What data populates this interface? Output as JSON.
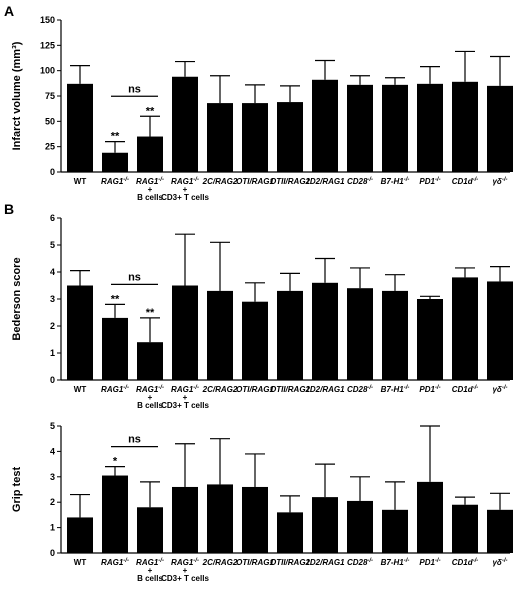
{
  "categories": [
    [
      "WT"
    ],
    [
      "RAG1-/-"
    ],
    [
      "RAG1-/-",
      "+",
      "B cells"
    ],
    [
      "RAG1-/-",
      "+",
      "CD3+ T cells"
    ],
    [
      "2C/RAG2"
    ],
    [
      "OTI/RAG1"
    ],
    [
      "OTII/RAG1"
    ],
    [
      "2D2/RAG1"
    ],
    [
      "CD28-/-"
    ],
    [
      "B7-H1-/-"
    ],
    [
      "PD1-/-"
    ],
    [
      "CD1d-/-"
    ],
    [
      "γδ-/-"
    ]
  ],
  "chart_data": [
    {
      "type": "bar",
      "panel": "A",
      "ylabel": "Infarct volume (mm³)",
      "ylim": [
        0,
        150
      ],
      "yticks": [
        0,
        25,
        50,
        75,
        100,
        125,
        150
      ],
      "values": [
        87,
        19,
        35,
        94,
        68,
        68,
        69,
        91,
        86,
        86,
        87,
        89,
        85
      ],
      "errors": [
        18,
        11,
        20,
        15,
        27,
        18,
        16,
        19,
        9,
        7,
        17,
        30,
        29
      ],
      "annotations": [
        "",
        "**",
        "**",
        "",
        "",
        "",
        "",
        "",
        "",
        "",
        "",
        "",
        ""
      ],
      "bracket": {
        "from": 1,
        "to": 2,
        "label": "ns"
      }
    },
    {
      "type": "bar",
      "panel": "B",
      "ylabel": "Bederson score",
      "ylim": [
        0,
        6
      ],
      "yticks": [
        0,
        1,
        2,
        3,
        4,
        5,
        6
      ],
      "values": [
        3.5,
        2.3,
        1.4,
        3.5,
        3.3,
        2.9,
        3.3,
        3.6,
        3.4,
        3.3,
        3.0,
        3.8,
        3.65
      ],
      "errors": [
        0.55,
        0.5,
        0.9,
        1.9,
        1.8,
        0.7,
        0.65,
        0.9,
        0.75,
        0.6,
        0.1,
        0.35,
        0.55
      ],
      "annotations": [
        "",
        "**",
        "**",
        "",
        "",
        "",
        "",
        "",
        "",
        "",
        "",
        "",
        ""
      ],
      "bracket": {
        "from": 1,
        "to": 2,
        "label": "ns"
      }
    },
    {
      "type": "bar",
      "panel": "",
      "ylabel": "Grip test",
      "ylim": [
        0,
        5
      ],
      "yticks": [
        0,
        1,
        2,
        3,
        4,
        5
      ],
      "values": [
        1.4,
        3.05,
        1.8,
        2.6,
        2.7,
        2.6,
        1.6,
        2.2,
        2.05,
        1.7,
        2.8,
        1.9,
        1.7
      ],
      "errors": [
        0.9,
        0.35,
        1.0,
        1.7,
        1.8,
        1.3,
        0.65,
        1.3,
        0.95,
        1.1,
        2.2,
        0.3,
        0.65
      ],
      "annotations": [
        "",
        "*",
        "",
        "",
        "",
        "",
        "",
        "",
        "",
        "",
        "",
        "",
        ""
      ],
      "bracket": {
        "from": 1,
        "to": 2,
        "label": "ns"
      }
    }
  ]
}
